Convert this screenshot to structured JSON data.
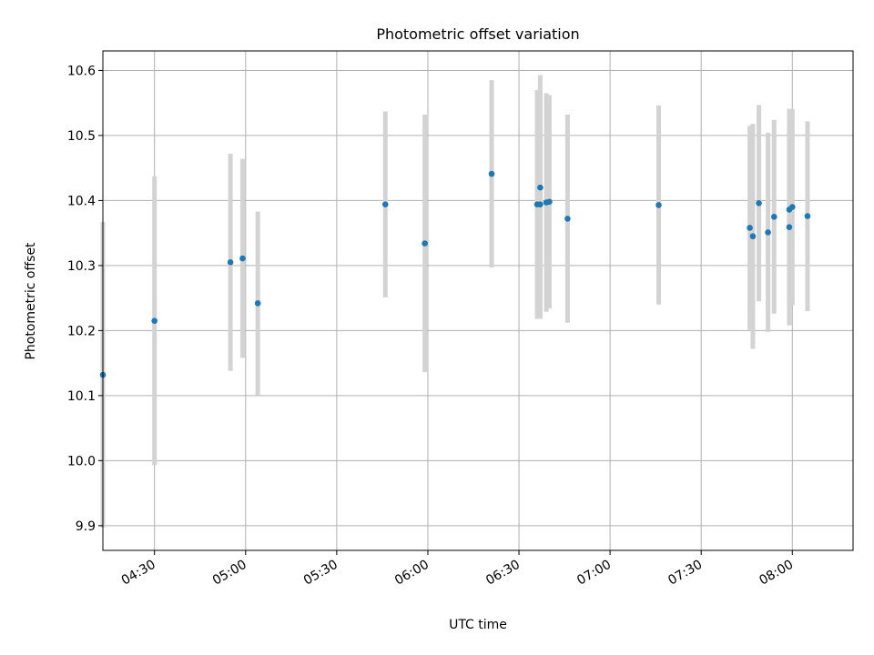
{
  "chart_data": {
    "type": "scatter",
    "title": "Photometric offset variation",
    "xlabel": "UTC time",
    "ylabel": "Photometric offset",
    "grid": true,
    "xlim": [
      "04:13",
      "08:20"
    ],
    "ylim": [
      9.862,
      10.63
    ],
    "x_ticks": [
      "04:30",
      "05:00",
      "05:30",
      "06:00",
      "06:30",
      "07:00",
      "07:30",
      "08:00"
    ],
    "y_ticks": [
      "9.9",
      "10.0",
      "10.1",
      "10.2",
      "10.3",
      "10.4",
      "10.5",
      "10.6"
    ],
    "colors": {
      "point": "#1f77b4",
      "errorbar": "#d3d3d3",
      "grid": "#b0b0b0"
    },
    "series": [
      {
        "x": [
          "04:13",
          "04:30",
          "04:55",
          "04:59",
          "05:04",
          "05:46",
          "05:59",
          "06:21",
          "06:36",
          "06:37",
          "06:37",
          "06:39",
          "06:40",
          "06:46",
          "07:16",
          "07:46",
          "07:47",
          "07:49",
          "07:52",
          "07:54",
          "07:59",
          "07:59",
          "08:00",
          "08:05"
        ],
        "y": [
          10.132,
          10.215,
          10.305,
          10.311,
          10.242,
          10.394,
          10.334,
          10.441,
          10.394,
          10.394,
          10.42,
          10.397,
          10.398,
          10.372,
          10.393,
          10.358,
          10.345,
          10.396,
          10.351,
          10.375,
          10.359,
          10.386,
          10.39,
          10.376
        ],
        "yerr": [
          0.235,
          0.222,
          0.167,
          0.153,
          0.141,
          0.143,
          0.198,
          0.144,
          0.176,
          0.176,
          0.173,
          0.168,
          0.164,
          0.16,
          0.153,
          0.157,
          0.173,
          0.151,
          0.153,
          0.149,
          0.151,
          0.155,
          0.151,
          0.146
        ]
      }
    ]
  }
}
